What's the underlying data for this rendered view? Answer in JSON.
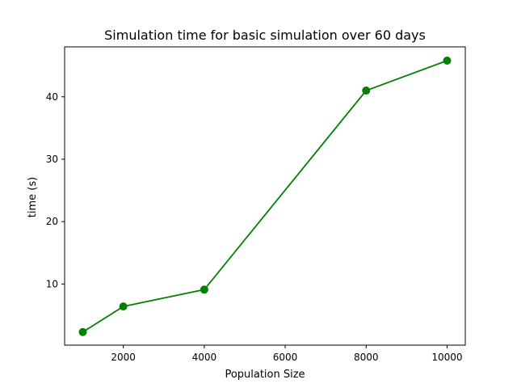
{
  "chart_data": {
    "type": "line",
    "title": "Simulation time for basic simulation over 60 days",
    "xlabel": "Population Size",
    "ylabel": "time (s)",
    "xlim": [
      550,
      10450
    ],
    "ylim": [
      0.2,
      48.0
    ],
    "x_ticks": [
      2000,
      4000,
      6000,
      8000,
      10000
    ],
    "y_ticks": [
      10,
      20,
      30,
      40
    ],
    "x_tick_labels": [
      "2000",
      "4000",
      "6000",
      "8000",
      "10000"
    ],
    "y_tick_labels": [
      "10",
      "20",
      "30",
      "40"
    ],
    "grid": false,
    "legend": "none",
    "series": [
      {
        "color": "#008000",
        "marker": "circle",
        "x": [
          1000,
          2000,
          4000,
          8000,
          10000
        ],
        "y": [
          2.3,
          6.4,
          9.1,
          41.0,
          45.8
        ]
      }
    ]
  }
}
